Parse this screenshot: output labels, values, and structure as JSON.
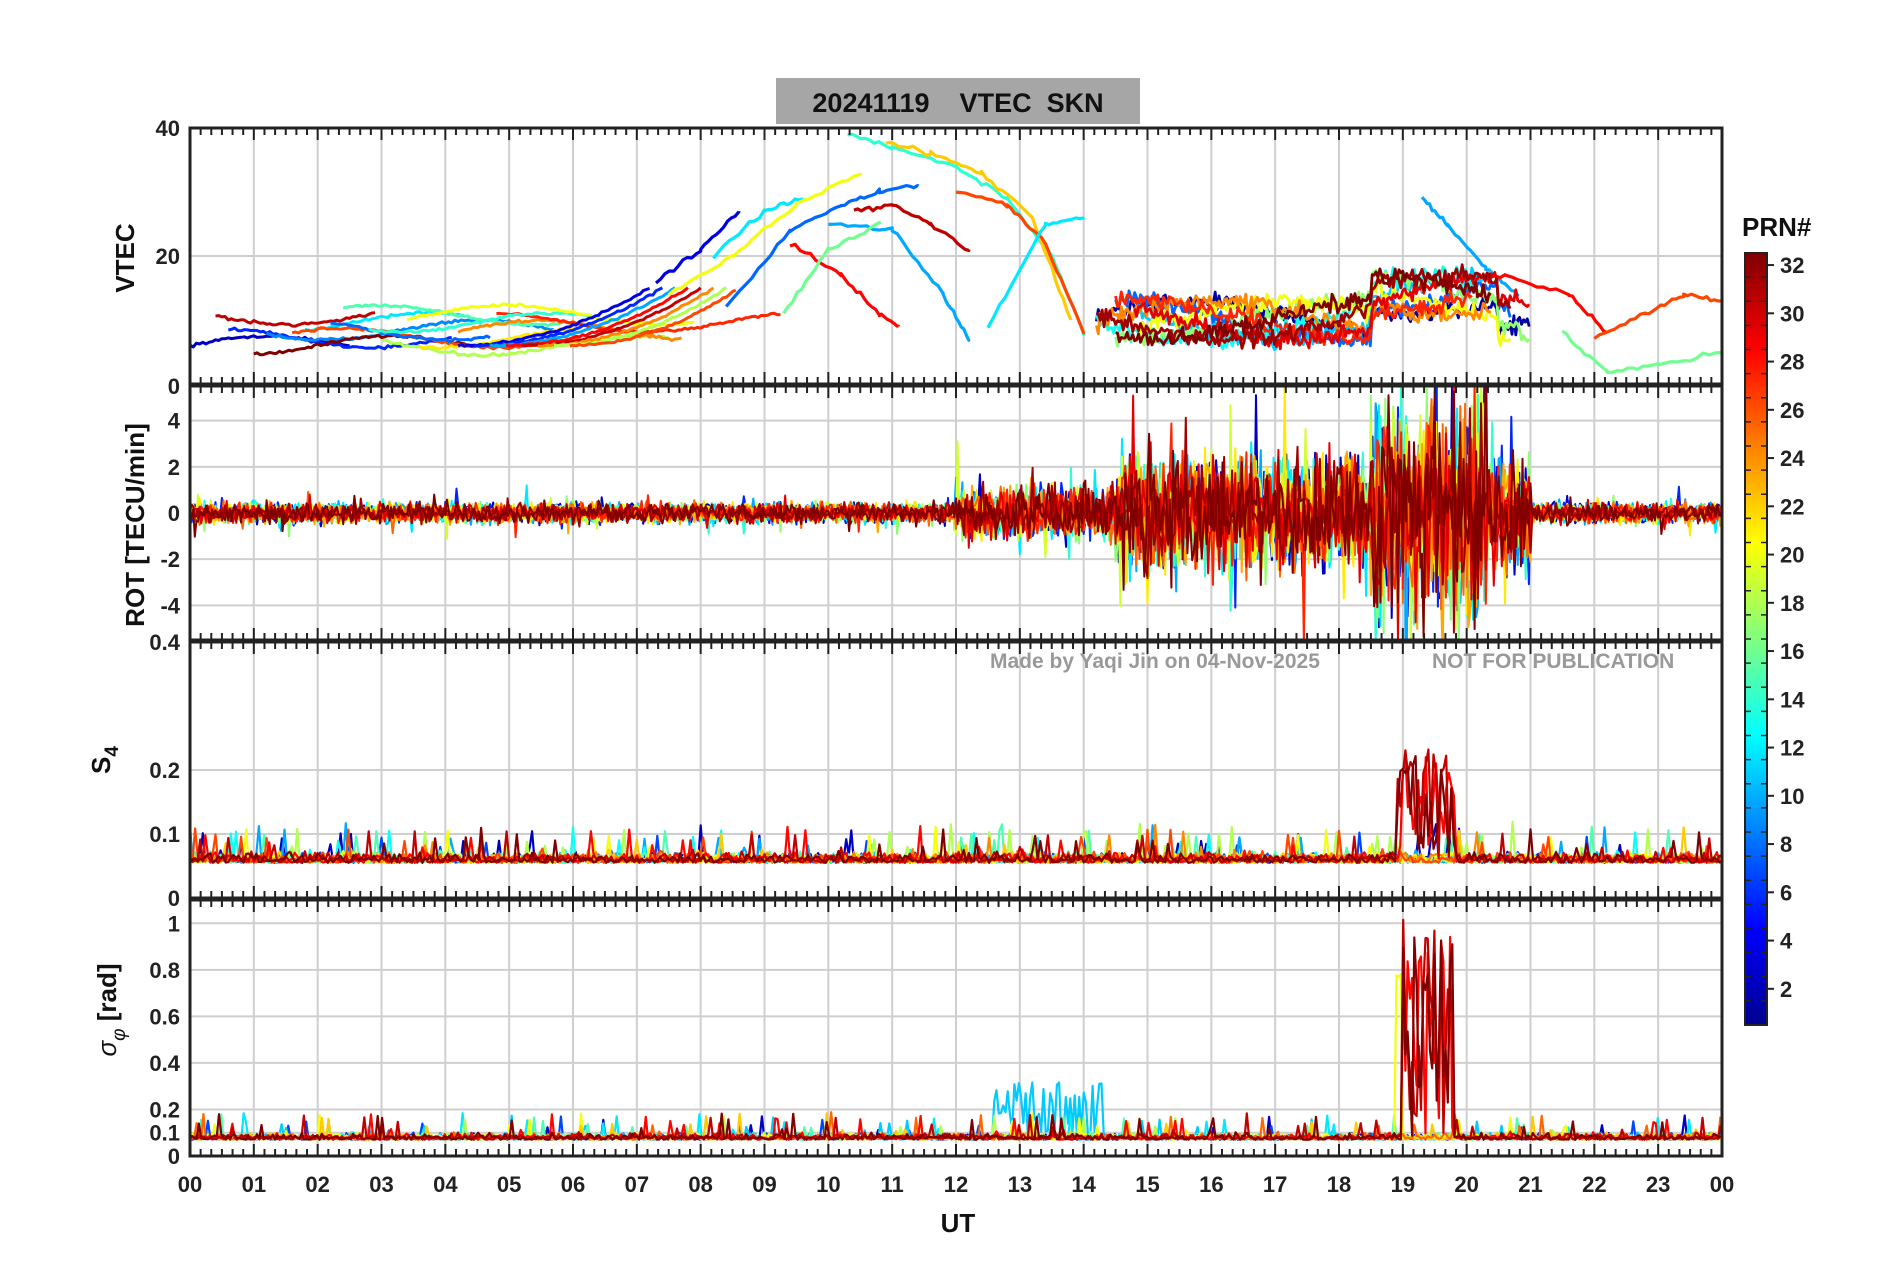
{
  "title": "20241119    VTEC  SKN",
  "watermark_left": "Made by Yaqi Jin on 04-Nov-2025",
  "watermark_right": "NOT FOR PUBLICATION",
  "colorbar": {
    "label": "PRN#",
    "ticks": [
      "32",
      "30",
      "28",
      "26",
      "24",
      "22",
      "20",
      "18",
      "16",
      "14",
      "12",
      "10",
      "8",
      "6",
      "4",
      "2"
    ]
  },
  "x_axis": {
    "label": "UT",
    "ticks": [
      "00",
      "01",
      "02",
      "03",
      "04",
      "05",
      "06",
      "07",
      "08",
      "09",
      "10",
      "11",
      "12",
      "13",
      "14",
      "15",
      "16",
      "17",
      "18",
      "19",
      "20",
      "21",
      "22",
      "23",
      "00"
    ]
  },
  "chart_data": [
    {
      "type": "line",
      "panel": "VTEC",
      "ylabel": "VTEC",
      "ylim": [
        0,
        40
      ],
      "yticks": [
        "40",
        "20"
      ],
      "series": [
        {
          "color_prn": 4,
          "x": [
            7.3,
            8.0,
            8.6
          ],
          "y": [
            16,
            21,
            27
          ]
        },
        {
          "color_prn": 12,
          "x": [
            8.2,
            9.0,
            9.6
          ],
          "y": [
            20,
            27,
            29
          ]
        },
        {
          "color_prn": 8,
          "x": [
            8.4,
            9.4,
            10.2,
            10.8,
            11.4
          ],
          "y": [
            12,
            24,
            28,
            30,
            31
          ]
        },
        {
          "color_prn": 20,
          "x": [
            7.5,
            8.5,
            9.5,
            10.5
          ],
          "y": [
            14,
            20,
            28,
            33
          ]
        },
        {
          "color_prn": 14,
          "x": [
            10.3,
            11.0,
            12.0,
            12.8,
            13.5,
            14.0
          ],
          "y": [
            39,
            37,
            34,
            29,
            20,
            8
          ]
        },
        {
          "color_prn": 22,
          "x": [
            10.9,
            11.6,
            12.4,
            13.2,
            13.8
          ],
          "y": [
            38,
            36,
            33,
            26,
            10
          ]
        },
        {
          "color_prn": 26,
          "x": [
            12.0,
            12.8,
            13.4,
            14.0
          ],
          "y": [
            30,
            28,
            22,
            8
          ]
        },
        {
          "color_prn": 28,
          "x": [
            9.4,
            10.2,
            10.8,
            11.1
          ],
          "y": [
            22,
            17,
            11,
            9
          ]
        },
        {
          "color_prn": 30,
          "x": [
            10.4,
            11.0,
            11.6,
            12.2
          ],
          "y": [
            27,
            28,
            25,
            21
          ]
        },
        {
          "color_prn": 10,
          "x": [
            10.0,
            11.0,
            11.8,
            12.2
          ],
          "y": [
            25,
            24,
            14,
            7
          ]
        },
        {
          "color_prn": 16,
          "x": [
            9.3,
            10.0,
            10.8
          ],
          "y": [
            11,
            21,
            25
          ]
        },
        {
          "color_prn": 12,
          "x": [
            12.5,
            13.4,
            14.0
          ],
          "y": [
            9,
            25,
            26
          ]
        },
        {
          "color_prn": 10,
          "x": [
            19.3,
            19.7,
            20.3,
            20.8
          ],
          "y": [
            29,
            25,
            18,
            14
          ]
        },
        {
          "color_prn": 28,
          "x": [
            19.8,
            20.6,
            21.6,
            22.2
          ],
          "y": [
            16,
            17,
            14,
            8
          ]
        },
        {
          "color_prn": 26,
          "x": [
            22.0,
            22.8,
            23.4,
            24.0
          ],
          "y": [
            7,
            11,
            14,
            13
          ]
        },
        {
          "color_prn": 16,
          "x": [
            21.5,
            22.2,
            23.0,
            24.0
          ],
          "y": [
            8,
            2,
            3,
            5
          ]
        }
      ]
    },
    {
      "type": "line",
      "panel": "ROT",
      "ylabel": "ROT [TECU/min]",
      "ylim": [
        -5.5,
        5.5
      ],
      "yticks": [
        "4",
        "2",
        "0",
        "-2",
        "-4"
      ],
      "top_tick": "0"
    },
    {
      "type": "line",
      "panel": "S4",
      "ylabel": "S4",
      "ylim": [
        0,
        0.4
      ],
      "yticks": [
        "0.2",
        "0.1",
        "0"
      ],
      "top_tick": "0.4"
    },
    {
      "type": "line",
      "panel": "sigma_phi",
      "ylabel": "σφ [rad]",
      "ylim": [
        0,
        1.1
      ],
      "yticks": [
        "1",
        "0.8",
        "0.6",
        "0.4",
        "0.2",
        "0.1",
        "0"
      ]
    }
  ]
}
